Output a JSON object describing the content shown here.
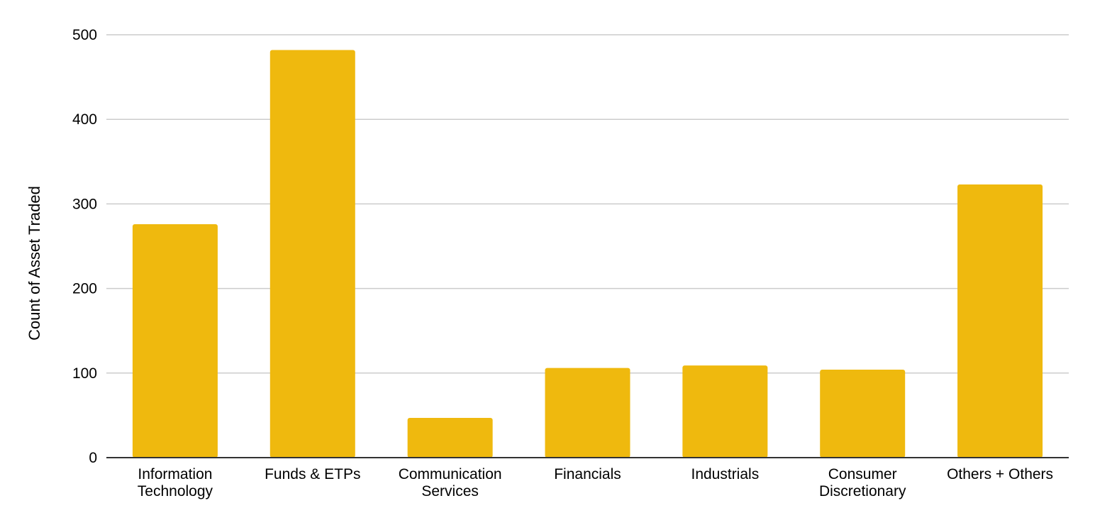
{
  "chart_data": {
    "type": "bar",
    "title": "",
    "xlabel": "",
    "ylabel": "Count of Asset Traded",
    "ylim": [
      0,
      500
    ],
    "yticks": [
      0,
      100,
      200,
      300,
      400,
      500
    ],
    "grid": true,
    "legend": "none",
    "categories": [
      [
        "Information",
        "Technology"
      ],
      [
        "Funds & ETPs"
      ],
      [
        "Communication",
        "Services"
      ],
      [
        "Financials"
      ],
      [
        "Industrials"
      ],
      [
        "Consumer",
        "Discretionary"
      ],
      [
        "Others + Others"
      ]
    ],
    "values": [
      276,
      482,
      47,
      106,
      109,
      104,
      323
    ]
  },
  "colors": {
    "bar": "#efb90e",
    "grid": "#cccccc",
    "baseline": "#333333",
    "text": "#000000"
  }
}
